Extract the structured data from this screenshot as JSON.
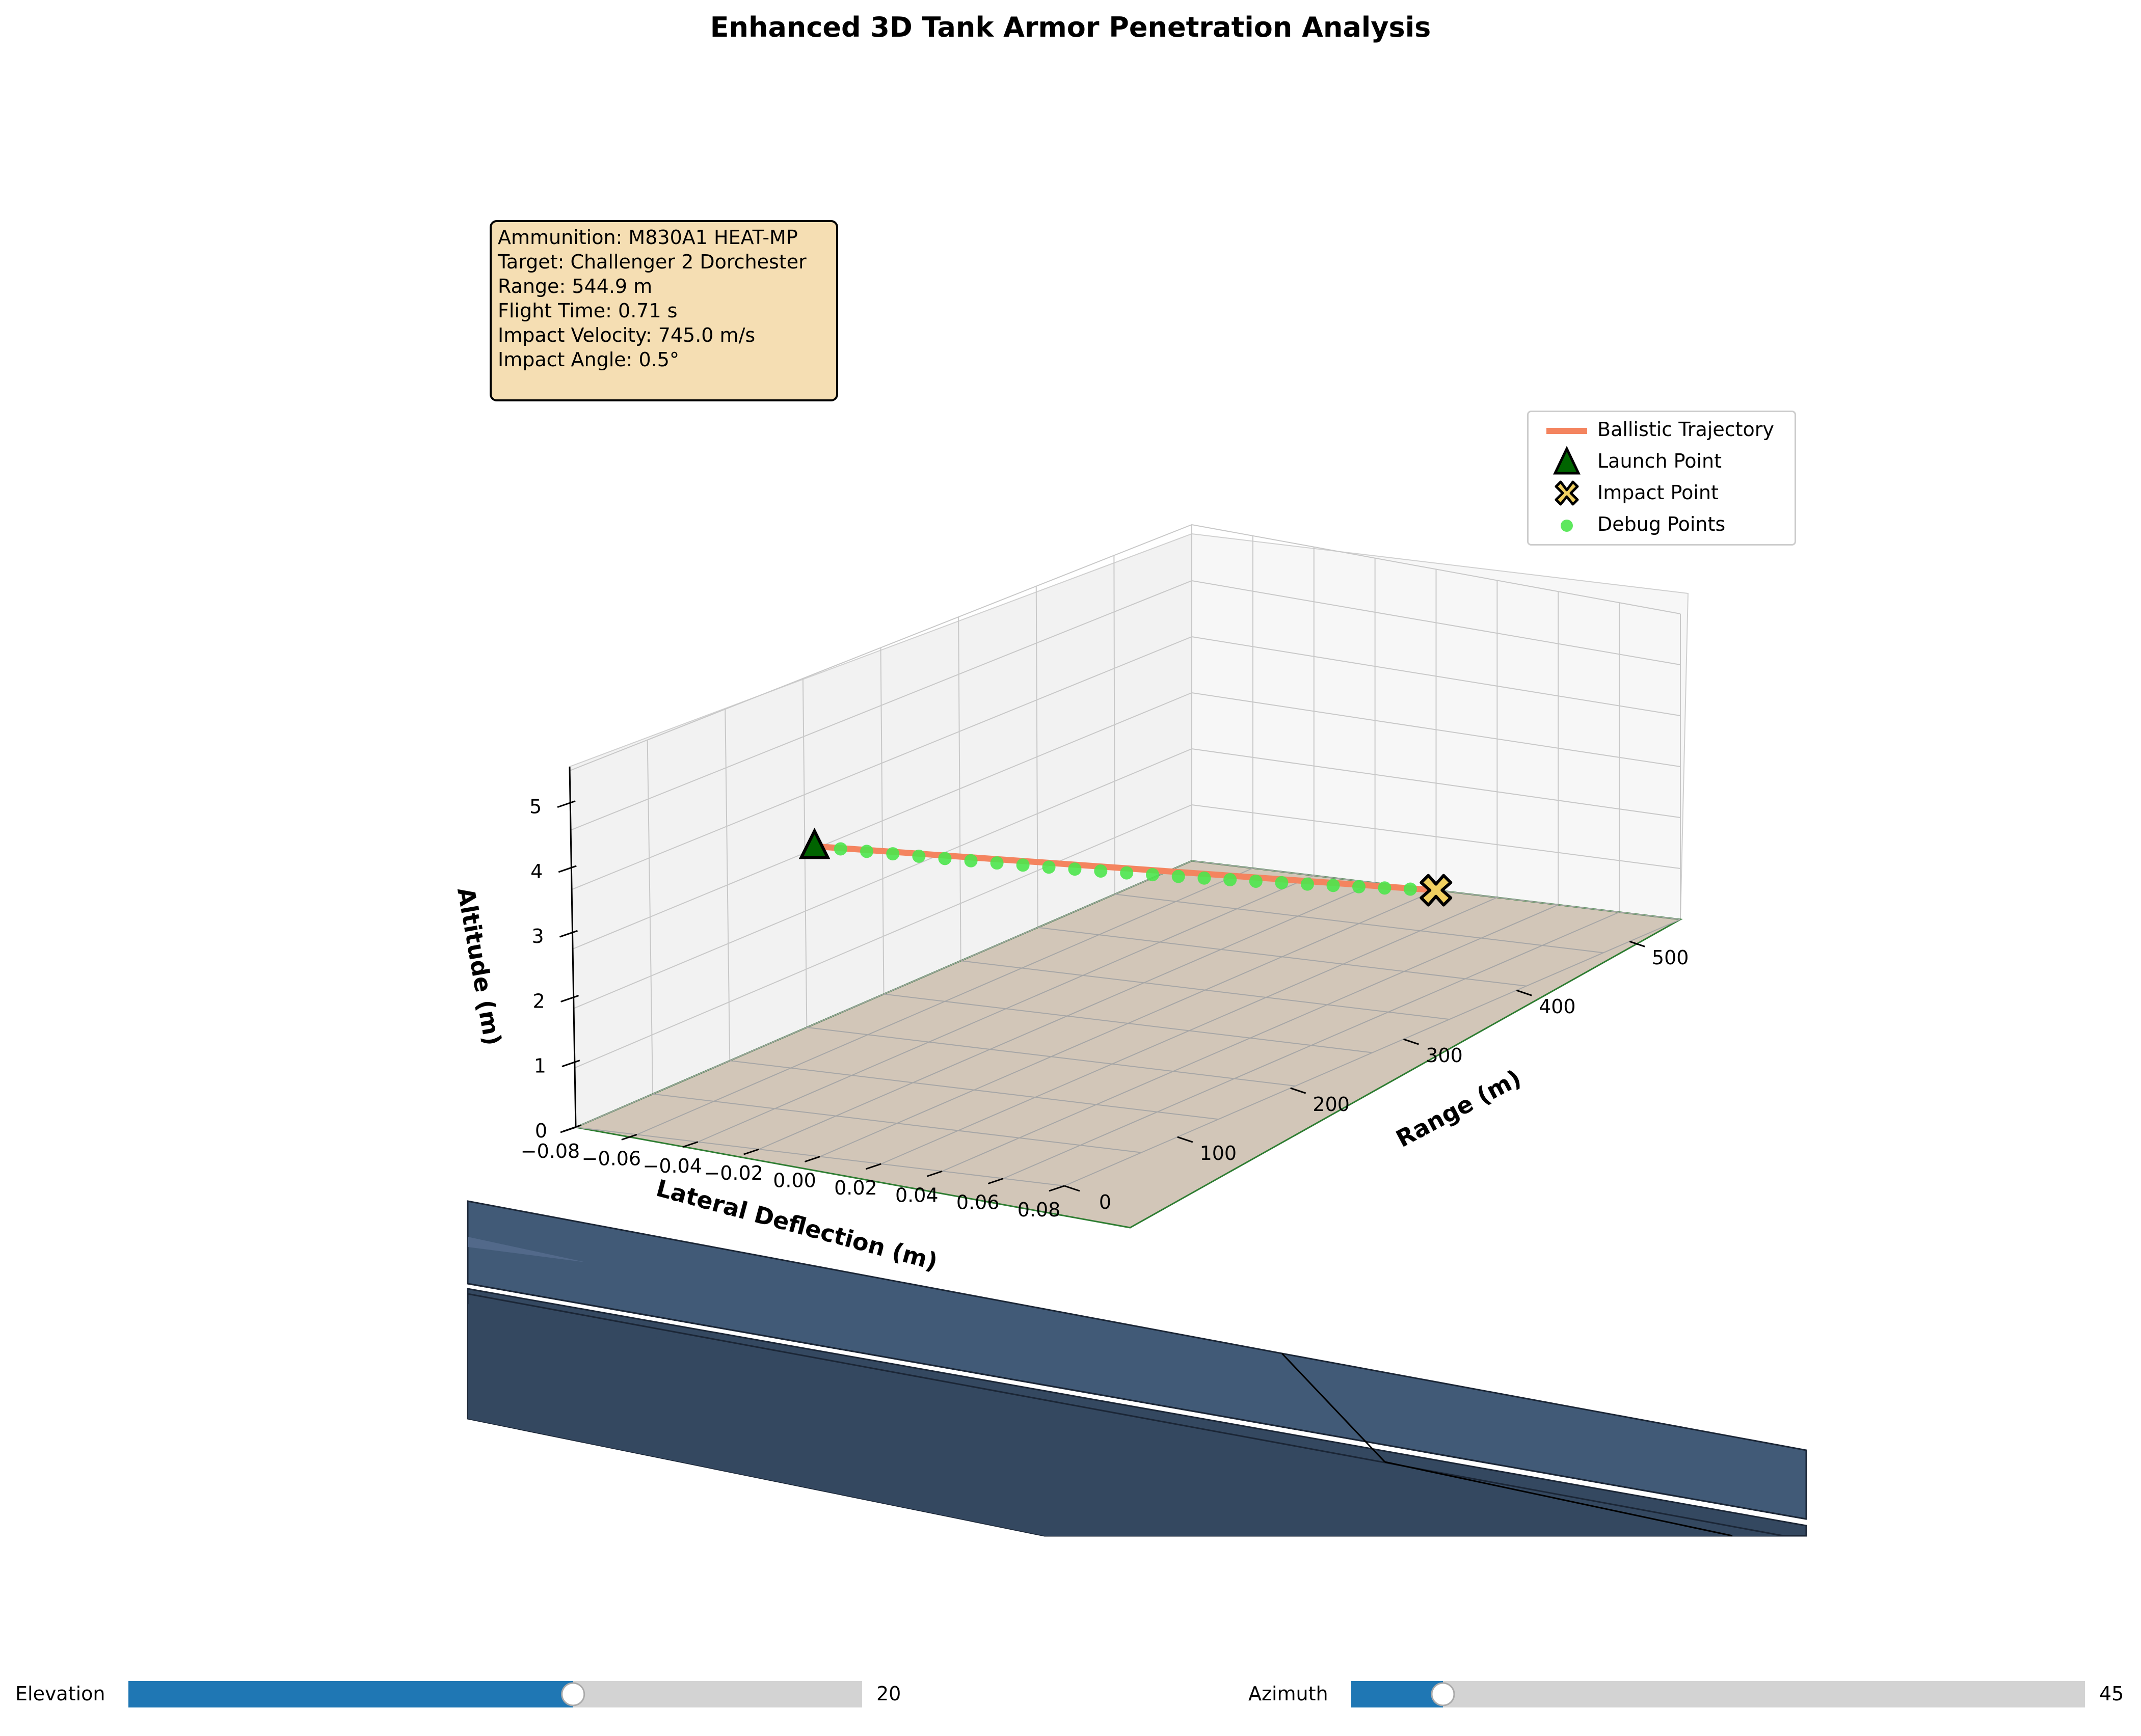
{
  "title": "Enhanced 3D Tank Armor Penetration Analysis",
  "info_box": {
    "lines": [
      "Ammunition: M830A1 HEAT-MP",
      "Target: Challenger 2 Dorchester",
      "Range: 544.9 m",
      "Flight Time: 0.71 s",
      "Impact Velocity: 745.0 m/s",
      "Impact Angle: 0.5°"
    ]
  },
  "legend": {
    "entries": [
      "Ballistic Trajectory",
      "Launch Point",
      "Impact Point",
      "Debug Points"
    ]
  },
  "colors": {
    "trajectory": "#f4845f",
    "launch": "#006400",
    "impact": "#f0d060",
    "debug": "#4ce64c",
    "ground": "#d2c6b8",
    "armor_top": "#415a77",
    "armor_side": "#344860",
    "slider_fill": "#1f77b4",
    "slider_track": "#d3d3d3"
  },
  "sliders": [
    {
      "label": "Elevation",
      "value_text": "20",
      "value": 20,
      "min": 0,
      "max": 33
    },
    {
      "label": "Azimuth",
      "value_text": "45",
      "value": 45,
      "min": 0,
      "max": 360
    }
  ],
  "chart_data": {
    "type": "line3d",
    "title": "Enhanced 3D Tank Armor Penetration Analysis",
    "axes": {
      "x": {
        "label": "Lateral Deflection (m)",
        "ticks": [
          "−0.08",
          "−0.06",
          "−0.04",
          "−0.02",
          "0.00",
          "0.02",
          "0.04",
          "0.06",
          "0.08"
        ],
        "lim": [
          -0.08,
          0.08
        ]
      },
      "y": {
        "label": "Range (m)",
        "ticks": [
          "0",
          "100",
          "200",
          "300",
          "400",
          "500"
        ],
        "lim": [
          0,
          545
        ]
      },
      "z": {
        "label": "Altitude (m)",
        "ticks": [
          "0",
          "1",
          "2",
          "3",
          "4",
          "5"
        ],
        "lim": [
          0,
          5.5
        ]
      }
    },
    "series": [
      {
        "name": "Ballistic Trajectory",
        "kind": "line",
        "range": [
          0,
          544.9
        ],
        "altitude": [
          5.0,
          0.0
        ],
        "lateral": 0.0
      },
      {
        "name": "Launch Point",
        "kind": "marker",
        "marker": "triangle",
        "range": 0,
        "altitude": 5.0,
        "lateral": 0.0
      },
      {
        "name": "Impact Point",
        "kind": "marker",
        "marker": "x",
        "range": 544.9,
        "altitude": 0.0,
        "lateral": 0.0
      },
      {
        "name": "Debug Points",
        "kind": "scatter",
        "count": 25,
        "range": [
          0,
          544.9
        ],
        "altitude": [
          5.0,
          0.0
        ],
        "lateral": 0.0
      }
    ],
    "grid": true,
    "view": {
      "elevation": 20,
      "azimuth": 45
    },
    "legend_position": "top-right"
  }
}
